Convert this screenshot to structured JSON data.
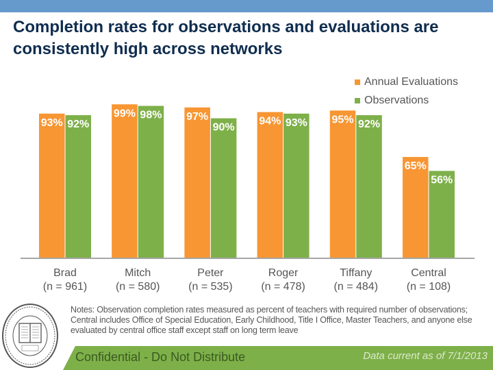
{
  "header": {
    "title": "Completion rates for observations and evaluations are consistently high across networks"
  },
  "colors": {
    "topbar": "#6699cc",
    "annual_evaluations": "#f79633",
    "observations": "#7eb04a",
    "axis": "#a6a6a6",
    "footer_band": "#7eb04a"
  },
  "chart_data": {
    "type": "bar",
    "title": "Completion rates for observations and evaluations are consistently high across networks",
    "xlabel": "",
    "ylabel": "",
    "ylim": [
      0,
      100
    ],
    "grid": false,
    "legend_position": "top-right",
    "categories": [
      "Brad",
      "Mitch",
      "Peter",
      "Roger",
      "Tiffany",
      "Central"
    ],
    "category_subtitles": [
      "(n = 961)",
      "(n = 580)",
      "(n = 535)",
      "(n = 478)",
      "(n = 484)",
      "(n = 108)"
    ],
    "series": [
      {
        "name": "Annual Evaluations",
        "color": "#f79633",
        "values": [
          93,
          99,
          97,
          94,
          95,
          65
        ],
        "labels": [
          "93%",
          "99%",
          "97%",
          "94%",
          "95%",
          "65%"
        ]
      },
      {
        "name": "Observations",
        "color": "#7eb04a",
        "values": [
          92,
          98,
          90,
          93,
          92,
          56
        ],
        "labels": [
          "92%",
          "98%",
          "90%",
          "93%",
          "92%",
          "56%"
        ]
      }
    ]
  },
  "notes": {
    "line1": "Notes: Observation completion rates measured as percent of teachers with required number of observations;",
    "line2": "Central includes Office of Special Education, Early Childhood,  Title I Office, Master Teachers, and anyone else evaluated by central office staff except staff on long term leave"
  },
  "footer": {
    "confidential": "Confidential - Do Not Distribute",
    "data_current": "Data current as of 7/1/2013"
  },
  "logo": {
    "icon": "school-seal-icon",
    "top_text": "The Newark Public Schools",
    "bottom_text": "Newark, New Jersey"
  }
}
